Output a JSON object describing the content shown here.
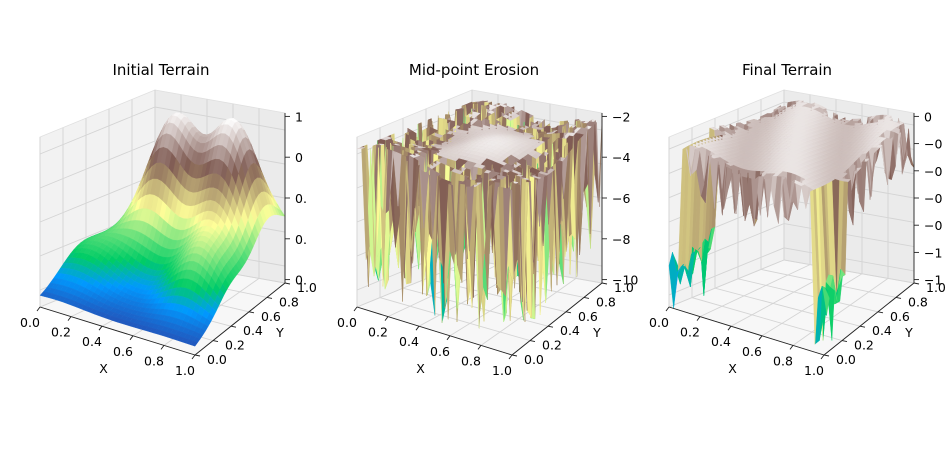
{
  "chart_data": [
    {
      "type": "surface",
      "title": "Initial Terrain",
      "xlabel": "X",
      "ylabel": "Y",
      "x_ticks": [
        "0.0",
        "0.2",
        "0.4",
        "0.6",
        "0.8",
        "1.0"
      ],
      "y_ticks": [
        "0.0",
        "0.2",
        "0.4",
        "0.6",
        "0.8",
        "1.0"
      ],
      "z_ticks": [
        "0.",
        "0.",
        "0.",
        "0",
        "1"
      ],
      "xlim": [
        0,
        1
      ],
      "ylim": [
        0,
        1
      ],
      "zlim": [
        0,
        1
      ],
      "colormap": "terrain",
      "grid": true,
      "surface": {
        "kind": "smooth_hills",
        "z_range": [
          0,
          1
        ]
      }
    },
    {
      "type": "surface",
      "title": "Mid-point Erosion",
      "xlabel": "X",
      "ylabel": "Y",
      "x_ticks": [
        "0.0",
        "0.2",
        "0.4",
        "0.6",
        "0.8",
        "1.0"
      ],
      "y_ticks": [
        "0.0",
        "0.2",
        "0.4",
        "0.6",
        "0.8",
        "1.0"
      ],
      "z_ticks": [
        "−10",
        "−8",
        "−6",
        "−4",
        "−2"
      ],
      "xlim": [
        0,
        1
      ],
      "ylim": [
        0,
        1
      ],
      "zlim": [
        -10,
        0
      ],
      "colormap": "terrain",
      "grid": true,
      "surface": {
        "kind": "eroded_with_spikes",
        "z_range": [
          -10,
          0
        ]
      }
    },
    {
      "type": "surface",
      "title": "Final Terrain",
      "xlabel": "X",
      "ylabel": "Y",
      "x_ticks": [
        "0.0",
        "0.2",
        "0.4",
        "0.6",
        "0.8",
        "1.0"
      ],
      "y_ticks": [
        "0.0",
        "0.2",
        "0.4",
        "0.6",
        "0.8",
        "1.0"
      ],
      "z_ticks": [
        "−1",
        "−1",
        "−0",
        "−0",
        "−0",
        "−0",
        "0"
      ],
      "xlim": [
        0,
        1
      ],
      "ylim": [
        0,
        1
      ],
      "zlim": [
        -1,
        0
      ],
      "colormap": "terrain",
      "grid": true,
      "surface": {
        "kind": "plateau_with_edge_drops",
        "z_range": [
          -1,
          0
        ]
      }
    }
  ]
}
